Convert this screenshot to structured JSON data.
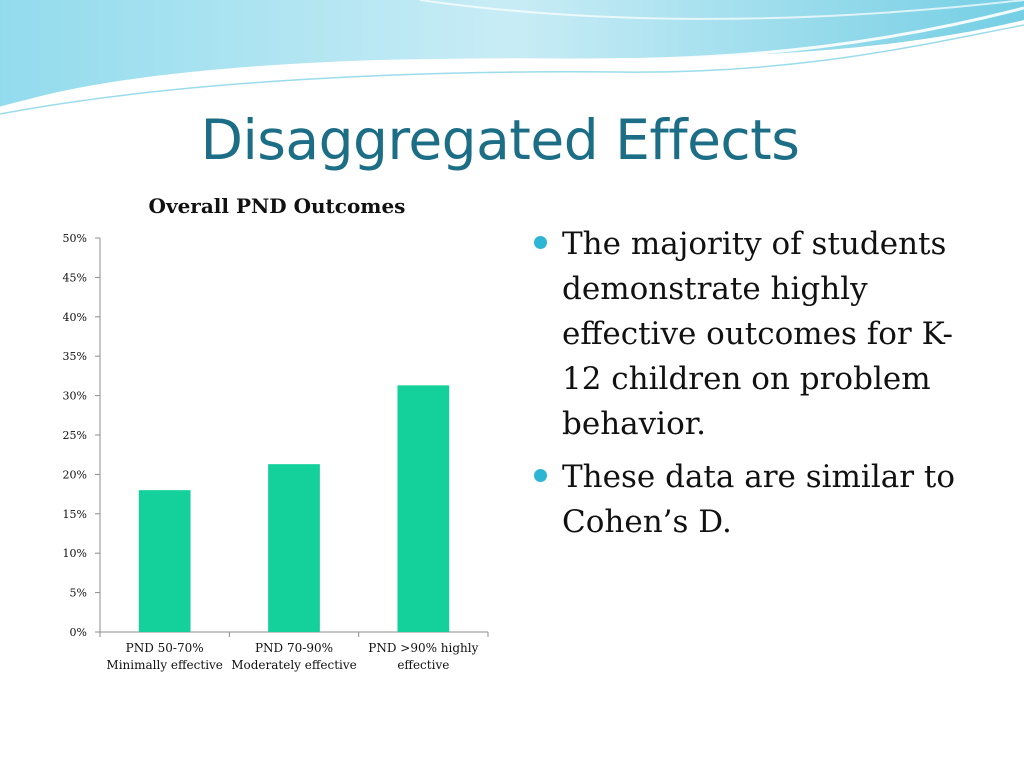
{
  "slide": {
    "title": "Disaggregated Effects",
    "bullets": [
      "The majority of students demonstrate highly effective outcomes for K-12 children on problem behavior.",
      "These data are similar to Cohen’s D."
    ]
  },
  "colors": {
    "title": "#1b6e86",
    "bar": "#14d19c",
    "bullet": "#2cb6d4",
    "wave_light": "#bfe9f4",
    "wave_dark": "#5cc6df"
  },
  "chart_data": {
    "type": "bar",
    "title": "Overall PND Outcomes",
    "categories": [
      [
        "PND 50-70%",
        "Minimally effective"
      ],
      [
        "PND 70-90%",
        "Moderately effective"
      ],
      [
        "PND >90% highly",
        "effective"
      ]
    ],
    "values": [
      18,
      21.3,
      31.3
    ],
    "yticks": [
      "0%",
      "5%",
      "10%",
      "15%",
      "20%",
      "25%",
      "30%",
      "35%",
      "40%",
      "45%",
      "50%"
    ],
    "ylim": [
      0,
      50
    ],
    "grid": false,
    "legend": false
  }
}
